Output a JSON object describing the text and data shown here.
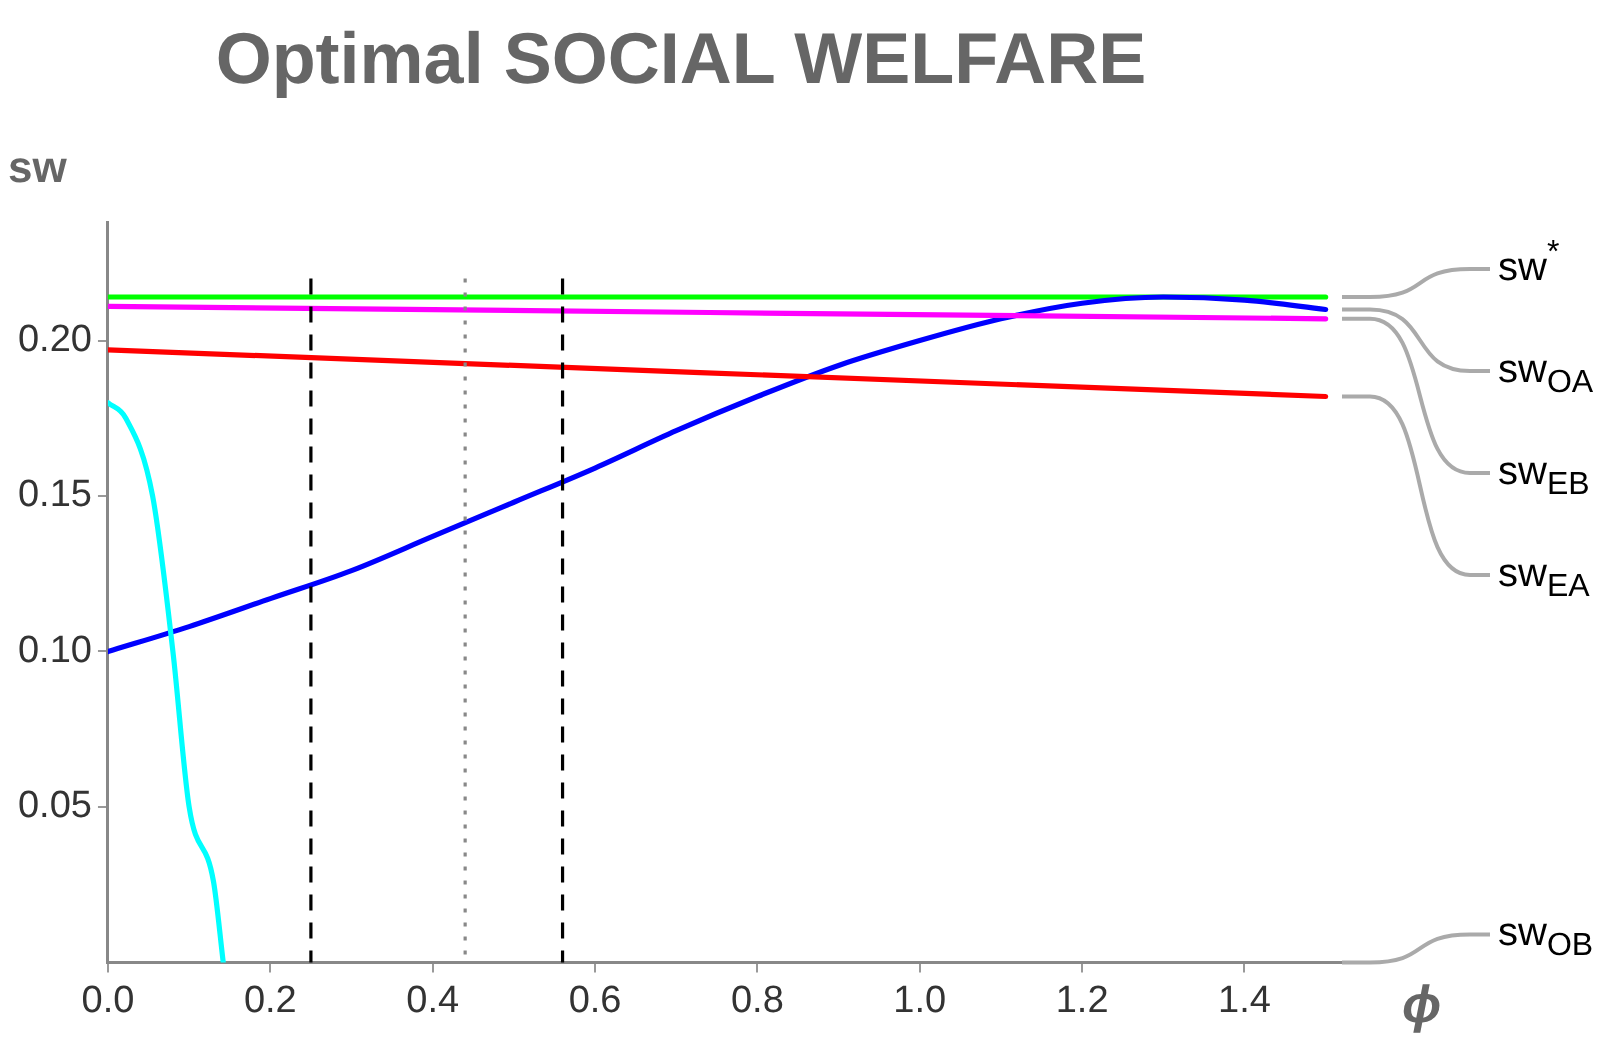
{
  "chart_data": {
    "type": "line",
    "title": "Optimal SOCIAL WELFARE",
    "xlabel": "ϕ",
    "ylabel": "sw",
    "xlim": [
      0,
      1.53
    ],
    "xticks": [
      {
        "value": 0,
        "label": "0.0"
      },
      0.2,
      0.4,
      0.6,
      0.8,
      {
        "value": 1,
        "label": "1.0"
      },
      1.2,
      1.4
    ],
    "ylim": [
      0,
      0.238
    ],
    "yticks": [
      0.05,
      {
        "value": 0.1,
        "label": "0.10"
      },
      0.15,
      {
        "value": 0.2,
        "label": "0.20"
      }
    ],
    "grid": false,
    "legend": false,
    "marker": "none",
    "line_style": "solid",
    "series": [
      {
        "name": "sw$^{*}$",
        "color": "#00ff00",
        "x": [
          0,
          1.5
        ],
        "values": [
          0.214,
          0.214
        ]
      },
      {
        "name": "sw$_{OA}$",
        "color": "#0000ff",
        "x": [
          0,
          0.1,
          0.2,
          0.3,
          0.4,
          0.5,
          0.6,
          0.7,
          0.8,
          0.9,
          1.0,
          1.1,
          1.2,
          1.3,
          1.4,
          1.5
        ],
        "values": [
          0.1,
          0.108,
          0.117,
          0.126,
          0.137,
          0.148,
          0.159,
          0.171,
          0.182,
          0.192,
          0.2,
          0.207,
          0.212,
          0.214,
          0.213,
          0.21
        ]
      },
      {
        "name": "sw$_{EB}$",
        "color": "#ff00ff",
        "x": [
          0,
          1.5
        ],
        "values": [
          0.211,
          0.207
        ]
      },
      {
        "name": "sw$_{EA}$",
        "color": "#ff0000",
        "x": [
          0,
          1.5
        ],
        "values": [
          0.197,
          0.182
        ]
      },
      {
        "name": "sw$_{OB}$",
        "color": "#00ffff",
        "x": [
          0,
          0.022,
          0.055,
          0.08,
          0.1,
          0.13,
          0.142
        ],
        "values": [
          0.18,
          0.175,
          0.15,
          0.1,
          0.05,
          0.026,
          0
        ]
      }
    ],
    "ref_lines": [
      {
        "axis": "x",
        "value": 0.25,
        "line_style": "dashed",
        "color": "#000000"
      },
      {
        "axis": "x",
        "value": 0.44,
        "line_style": "dotted",
        "color": "#888888"
      },
      {
        "axis": "x",
        "value": 0.56,
        "line_style": "dashed",
        "color": "#000000"
      }
    ]
  }
}
